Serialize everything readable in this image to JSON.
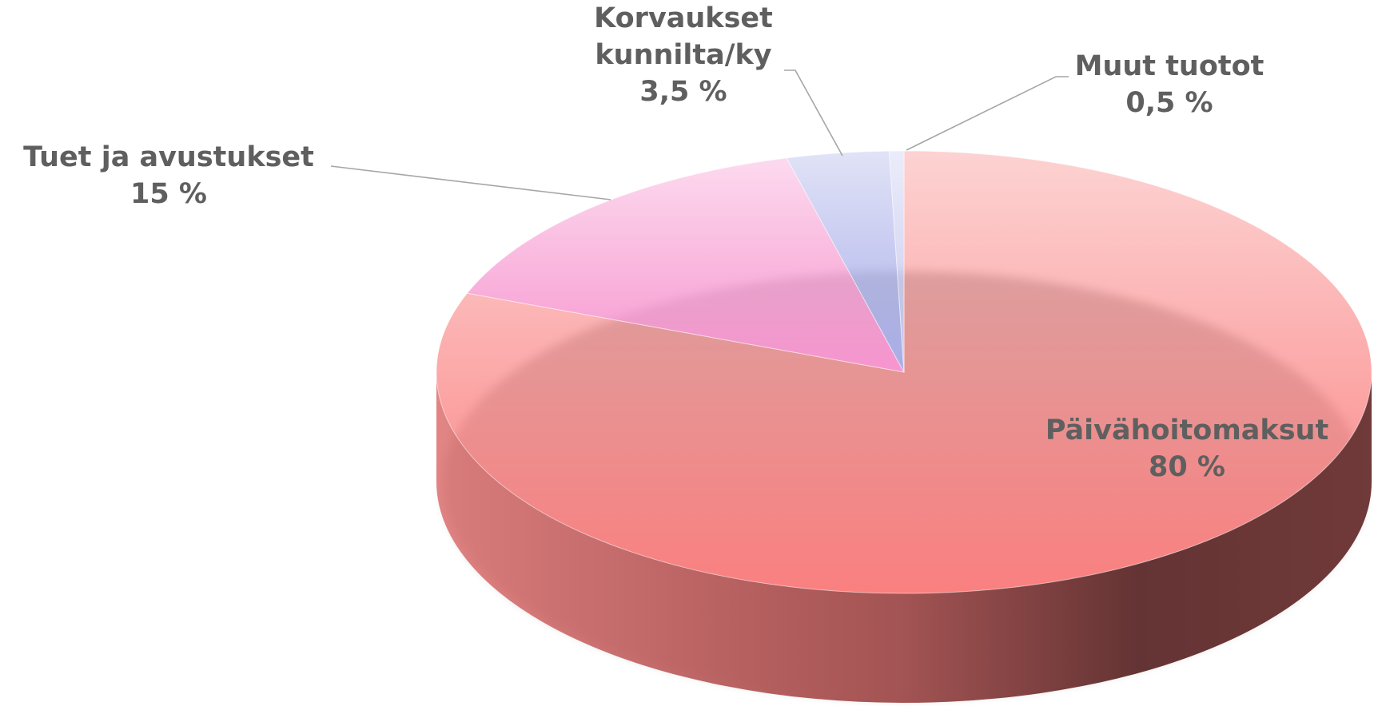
{
  "chart_data": {
    "type": "pie",
    "categories": [
      "Päivähoitomaksut",
      "Tuet ja avustukset",
      "Korvaukset kunnilta/ky",
      "Muut tuotot"
    ],
    "values": [
      80,
      15,
      3.5,
      0.5
    ],
    "value_labels": [
      "80 %",
      "15 %",
      "3,5 %",
      "0,5 %"
    ],
    "colors": [
      "#fa8080",
      "#f795cf",
      "#a9aee8",
      "#c6c8f0"
    ]
  }
}
